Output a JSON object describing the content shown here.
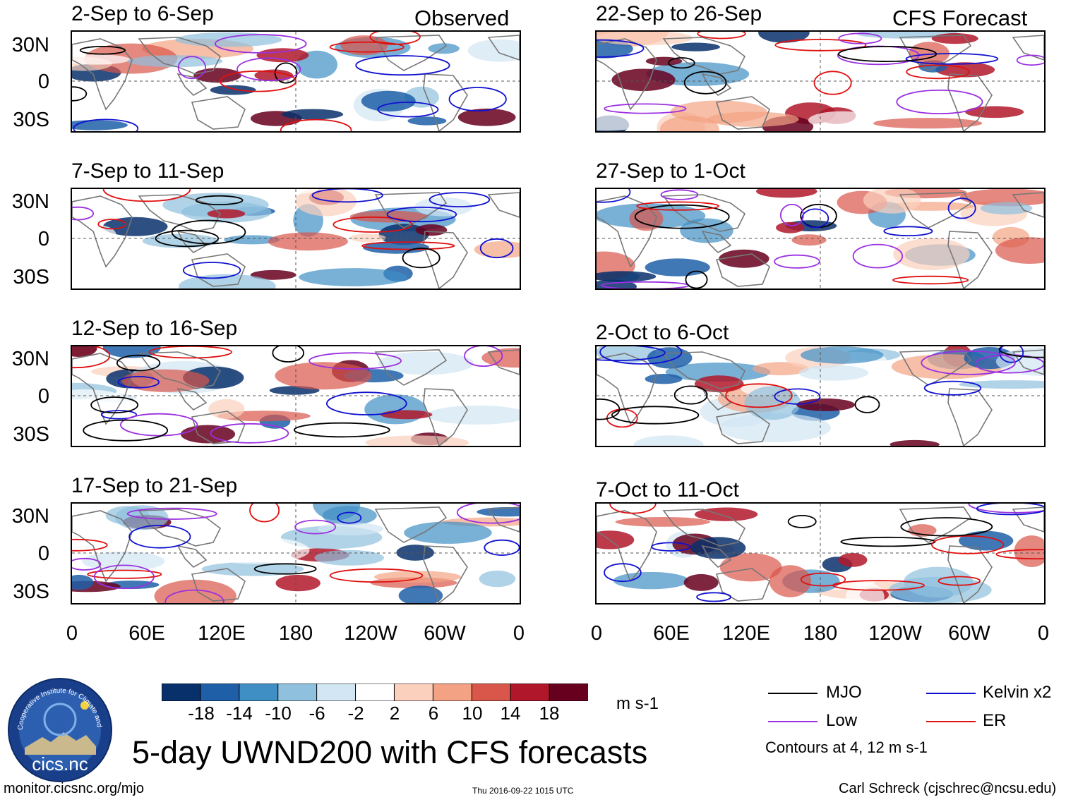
{
  "header": {
    "left_label": "Observed",
    "right_label": "CFS Forecast"
  },
  "panels": {
    "observed": [
      "2-Sep to 6-Sep",
      "7-Sep to 11-Sep",
      "12-Sep to 16-Sep",
      "17-Sep to 21-Sep"
    ],
    "forecast": [
      "22-Sep to 26-Sep",
      "27-Sep to 1-Oct",
      "2-Oct to 6-Oct",
      "7-Oct to 11-Oct"
    ]
  },
  "axes": {
    "lat_labels": [
      "30N",
      "0",
      "30S"
    ],
    "lon_labels": [
      "0",
      "60E",
      "120E",
      "180",
      "120W",
      "60W",
      "0"
    ]
  },
  "colorbar": {
    "ticks": [
      "-18",
      "-14",
      "-10",
      "-6",
      "-2",
      "2",
      "6",
      "10",
      "14",
      "18"
    ],
    "colors": [
      "#08306b",
      "#1f5fa8",
      "#3f8fc5",
      "#8fc1de",
      "#d2e6f3",
      "#ffffff",
      "#fbd0bc",
      "#f3a283",
      "#d9564a",
      "#b0172a",
      "#67001f"
    ],
    "units": "m s-1"
  },
  "legend": {
    "mjo": {
      "label": "MJO",
      "color": "#000000"
    },
    "kelvin": {
      "label": "Kelvin x2",
      "color": "#1010d0"
    },
    "low": {
      "label": "Low",
      "color": "#9b30e0"
    },
    "er": {
      "label": "ER",
      "color": "#e01010"
    },
    "contours_note": "Contours at 4, 12 m s-1"
  },
  "logo": {
    "ring_text": "Cooperative Institute for Climate and Satellites",
    "name": "cics.nc"
  },
  "footer": {
    "title": "5-day UWND200 with CFS forecasts",
    "url": "monitor.cicsnc.org/mjo",
    "timestamp": "Thu 2016-09-22 1015 UTC",
    "author": "Carl Schreck (cjschrec@ncsu.edu)"
  }
}
